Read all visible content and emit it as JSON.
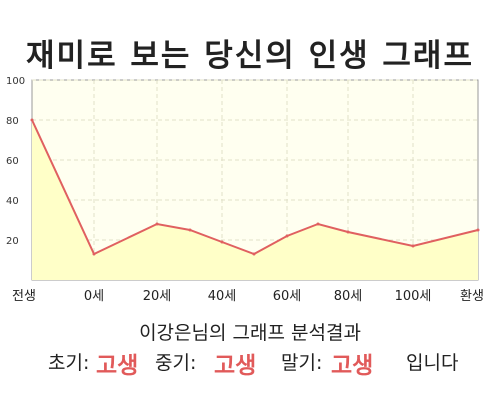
{
  "chart_data": {
    "type": "area",
    "title": "재미로 보는 당신의 인생 그래프",
    "x_labels": [
      "전생",
      "0세",
      "20세",
      "40세",
      "60세",
      "80세",
      "100세",
      "환생"
    ],
    "y_ticks": [
      20,
      40,
      60,
      80,
      100
    ],
    "ylim": [
      0,
      100
    ],
    "grid": true,
    "series": [
      {
        "points": [
          {
            "x": "전생",
            "y": 80
          },
          {
            "x": "0세",
            "y": 13
          },
          {
            "x": "20세",
            "y": 28
          },
          {
            "x": "30세",
            "y": 25
          },
          {
            "x": "40세",
            "y": 19
          },
          {
            "x": "50세",
            "y": 13
          },
          {
            "x": "60세",
            "y": 22
          },
          {
            "x": "70세",
            "y": 28
          },
          {
            "x": "80세",
            "y": 24
          },
          {
            "x": "100세",
            "y": 17
          },
          {
            "x": "환생",
            "y": 25
          }
        ]
      }
    ]
  },
  "colors": {
    "line": "#e06060",
    "area_fill": "#ffffc8",
    "plot_bg": "#fffff0",
    "accent_text": "#e15a5a"
  },
  "caption": "이강은님의 그래프 분석결과",
  "result": {
    "early_label": "초기:",
    "early_value": "고생",
    "mid_label": "중기:",
    "mid_value": "고생",
    "late_label": "말기:",
    "late_value": "고생",
    "suffix": "입니다"
  }
}
